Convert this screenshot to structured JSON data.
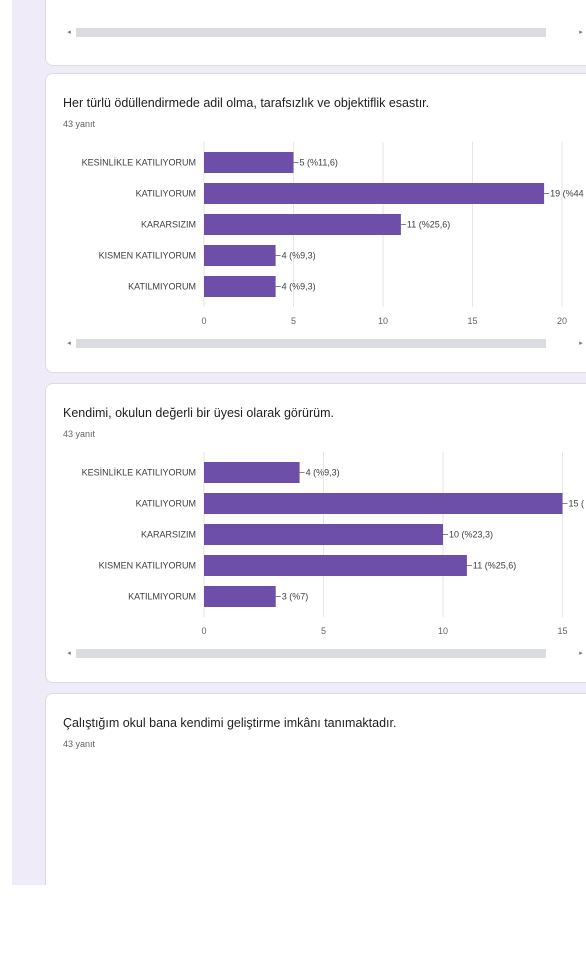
{
  "scrollbar": {
    "left_arrow": "◂",
    "right_arrow": "▸"
  },
  "colors": {
    "bar": "#6d4ea8",
    "grid": "#e6e6e6",
    "axis_text": "#5f6368"
  },
  "questions": [
    {
      "title": "Her türlü ödüllendirmede adil olma, tarafsızlık ve objektiflik esastır.",
      "count_label": "43 yanıt"
    },
    {
      "title": "Kendimi, okulun değerli bir üyesi olarak görürüm.",
      "count_label": "43 yanıt"
    },
    {
      "title": "Çalıştığım okul bana kendimi geliştirme imkânı tanımaktadır.",
      "count_label": "43 yanıt"
    }
  ],
  "chart_data": [
    {
      "type": "bar",
      "orientation": "horizontal",
      "categories": [
        "KESİNLİKLE KATILIYORUM",
        "KATILIYORUM",
        "KARARSIZIM",
        "KISMEN KATILIYORUM",
        "KATILMIYORUM"
      ],
      "values": [
        5,
        19,
        11,
        4,
        4
      ],
      "data_labels": [
        "5 (%11,6)",
        "19 (%44",
        "11 (%25,6)",
        "4 (%9,3)",
        "4 (%9,3)"
      ],
      "xticks": [
        0,
        5,
        10,
        15,
        20
      ],
      "xlim": [
        0,
        20
      ],
      "grid": true
    },
    {
      "type": "bar",
      "orientation": "horizontal",
      "categories": [
        "KESİNLİKLE KATILIYORUM",
        "KATILIYORUM",
        "KARARSIZIM",
        "KISMEN KATILIYORUM",
        "KATILMIYORUM"
      ],
      "values": [
        4,
        15,
        10,
        11,
        3
      ],
      "data_labels": [
        "4 (%9,3)",
        "15 (",
        "10 (%23,3)",
        "11 (%25,6)",
        "3 (%7)"
      ],
      "xticks": [
        0,
        5,
        10,
        15
      ],
      "xlim": [
        0,
        15
      ],
      "grid": true
    }
  ]
}
